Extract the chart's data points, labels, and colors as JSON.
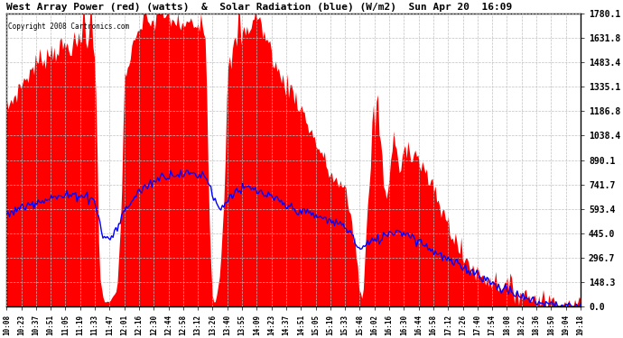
{
  "title": "West Array Power (red) (watts)  &  Solar Radiation (blue) (W/m2)  Sun Apr 20  16:09",
  "copyright": "Copyright 2008 Cartronics.com",
  "ymax": 1780.1,
  "yticks": [
    0.0,
    148.3,
    296.7,
    445.0,
    593.4,
    741.7,
    890.1,
    1038.4,
    1186.8,
    1335.1,
    1483.4,
    1631.8,
    1780.1
  ],
  "xtick_labels": [
    "10:08",
    "10:23",
    "10:37",
    "10:51",
    "11:05",
    "11:19",
    "11:33",
    "11:47",
    "12:01",
    "12:16",
    "12:30",
    "12:44",
    "12:58",
    "13:12",
    "13:26",
    "13:40",
    "13:55",
    "14:09",
    "14:23",
    "14:37",
    "14:51",
    "15:05",
    "15:19",
    "15:33",
    "15:48",
    "16:02",
    "16:16",
    "16:30",
    "16:44",
    "16:58",
    "17:12",
    "17:26",
    "17:40",
    "17:54",
    "18:08",
    "18:22",
    "18:36",
    "18:50",
    "19:04",
    "19:18"
  ],
  "bg_color": "#ffffff",
  "red_fill_color": "#ff0000",
  "blue_line_color": "#0000ff",
  "grid_color": "#c0c0c0",
  "title_color": "#000000",
  "copyright_color": "#000000"
}
